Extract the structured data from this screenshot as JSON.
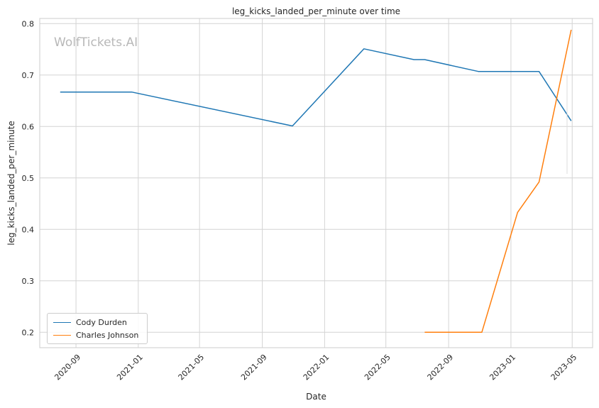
{
  "chart_data": {
    "type": "line",
    "title": "leg_kicks_landed_per_minute over time",
    "xlabel": "Date",
    "ylabel": "leg_kicks_landed_per_minute",
    "watermark": "WolfTickets.AI",
    "xlim": [
      "2020-06-22",
      "2023-06-10"
    ],
    "ylim": [
      0.17,
      0.81
    ],
    "x_ticks": [
      "2020-09",
      "2021-01",
      "2021-05",
      "2021-09",
      "2022-01",
      "2022-05",
      "2022-09",
      "2023-01",
      "2023-05"
    ],
    "y_ticks": [
      0.2,
      0.3,
      0.4,
      0.5,
      0.6,
      0.7,
      0.8
    ],
    "grid": true,
    "legend_position": "lower-left",
    "series": [
      {
        "name": "Cody Durden",
        "color": "#1f77b4",
        "points": [
          [
            "2020-08-01",
            0.667
          ],
          [
            "2020-12-19",
            0.667
          ],
          [
            "2021-10-30",
            0.601
          ],
          [
            "2022-03-19",
            0.751
          ],
          [
            "2022-06-25",
            0.73
          ],
          [
            "2022-07-16",
            0.73
          ],
          [
            "2022-10-29",
            0.707
          ],
          [
            "2023-02-25",
            0.707
          ],
          [
            "2023-04-29",
            0.611
          ]
        ]
      },
      {
        "name": "Charles Johnson",
        "color": "#ff7f0e",
        "points": [
          [
            "2022-07-16",
            0.2
          ],
          [
            "2022-11-05",
            0.2
          ],
          [
            "2023-01-14",
            0.433
          ],
          [
            "2023-02-25",
            0.492
          ],
          [
            "2023-04-29",
            0.788
          ]
        ]
      }
    ]
  }
}
